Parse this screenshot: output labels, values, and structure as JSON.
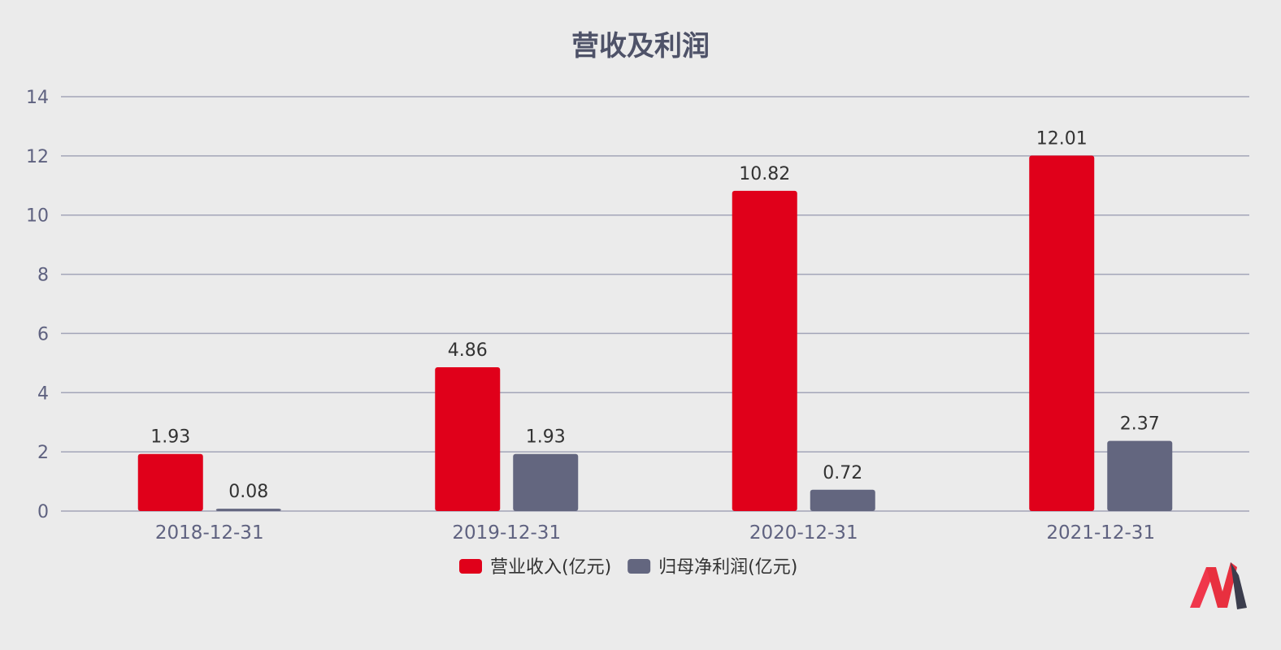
{
  "chart_data": {
    "type": "bar",
    "title": "营收及利润",
    "categories": [
      "2018-12-31",
      "2019-12-31",
      "2020-12-31",
      "2021-12-31"
    ],
    "series": [
      {
        "name": "营业收入(亿元)",
        "values": [
          1.93,
          4.86,
          10.82,
          12.01
        ],
        "labels": [
          "1.93",
          "4.86",
          "10.82",
          "12.01"
        ],
        "color": "#e0001a"
      },
      {
        "name": "归母净利润(亿元)",
        "values": [
          0.08,
          1.93,
          0.72,
          2.37
        ],
        "labels": [
          "0.08",
          "1.93",
          "0.72",
          "2.37"
        ],
        "color": "#63667f"
      }
    ],
    "ylim": [
      0,
      14
    ],
    "yticks": [
      0,
      2,
      4,
      6,
      8,
      10,
      12,
      14
    ],
    "grid": true,
    "legend_position": "bottom",
    "xlabel": "",
    "ylabel": ""
  },
  "logo": {
    "name": "logo-icon",
    "colors": [
      "#f0364b",
      "#3b3d4d"
    ]
  }
}
